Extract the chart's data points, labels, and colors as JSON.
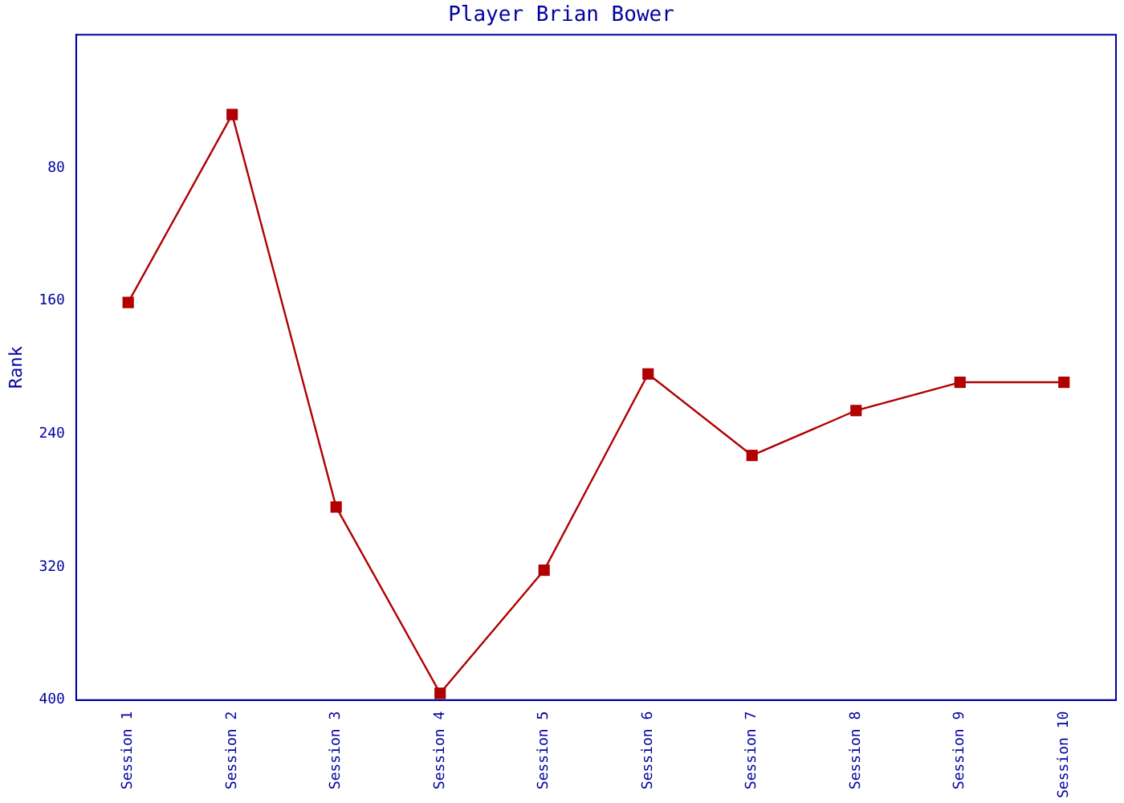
{
  "chart_data": {
    "type": "line",
    "title": "Player Brian Bower",
    "ylabel": "Rank",
    "categories": [
      "Session 1",
      "Session 2",
      "Session 3",
      "Session 4",
      "Session 5",
      "Session 6",
      "Session 7",
      "Session 8",
      "Session 9",
      "Session 10"
    ],
    "series": [
      {
        "color": "#b00000",
        "values": [
          161,
          48,
          284,
          396,
          322,
          204,
          253,
          226,
          209,
          209
        ]
      }
    ],
    "ylim": [
      400,
      0
    ],
    "yticks": [
      80,
      160,
      240,
      320,
      400
    ],
    "grid": false,
    "legend": false,
    "marker": "square",
    "line_style": "solid"
  }
}
